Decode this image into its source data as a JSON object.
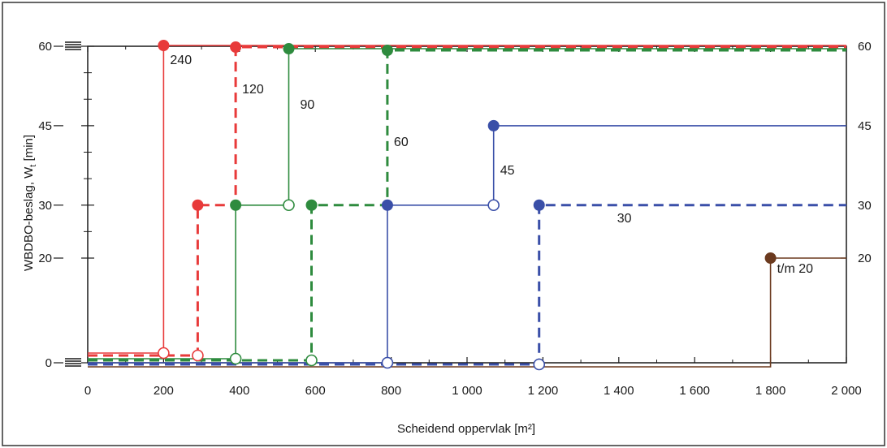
{
  "chart_data": {
    "type": "line",
    "xlabel": "Scheidend oppervlak [m²]",
    "ylabel": "WBDBO-beslag, W",
    "ylabel_sub": "t",
    "ylabel_unit": " [min]",
    "xlim": [
      0,
      2000
    ],
    "x_ticks": [
      0,
      200,
      400,
      600,
      800,
      1000,
      1200,
      1400,
      1600,
      1800,
      2000
    ],
    "x_tick_labels": [
      "0",
      "200",
      "400",
      "600",
      "800",
      "1 000",
      "1 200",
      "1 400",
      "1 600",
      "1 800",
      "2 000"
    ],
    "y_ticks_left": [
      0,
      20,
      30,
      45,
      60
    ],
    "y_tick_labels_left": [
      "0",
      "20",
      "30",
      "45",
      "60"
    ],
    "y_ticks_right": [
      20,
      30,
      45,
      60
    ],
    "y_tick_labels_right": [
      "20",
      "30",
      "45",
      "60"
    ],
    "grid": false,
    "series": [
      {
        "name": "240",
        "color": "#e83a3a",
        "dash": "solid",
        "points": [
          [
            0,
            0
          ],
          [
            200,
            0
          ],
          [
            200,
            60
          ],
          [
            2000,
            60
          ]
        ],
        "open_markers": [
          [
            200,
            0
          ]
        ],
        "filled_markers": [
          [
            200,
            60
          ]
        ]
      },
      {
        "name": "120",
        "color": "#e83a3a",
        "dash": "dashed",
        "points": [
          [
            0,
            0
          ],
          [
            290,
            0
          ],
          [
            290,
            30
          ],
          [
            390,
            30
          ],
          [
            390,
            60
          ],
          [
            2000,
            60
          ]
        ],
        "open_markers": [
          [
            290,
            0
          ]
        ],
        "filled_markers": [
          [
            290,
            30
          ],
          [
            390,
            60
          ]
        ]
      },
      {
        "name": "90",
        "color": "#2e8b3e",
        "dash": "solid",
        "points": [
          [
            0,
            0
          ],
          [
            390,
            0
          ],
          [
            390,
            30
          ],
          [
            530,
            30
          ],
          [
            530,
            60
          ],
          [
            2000,
            60
          ]
        ],
        "open_markers": [
          [
            390,
            0
          ],
          [
            530,
            30
          ]
        ],
        "filled_markers": [
          [
            390,
            30
          ],
          [
            530,
            60
          ]
        ]
      },
      {
        "name": "60",
        "color": "#2e8b3e",
        "dash": "dashed",
        "points": [
          [
            0,
            0
          ],
          [
            590,
            0
          ],
          [
            590,
            30
          ],
          [
            790,
            30
          ],
          [
            790,
            60
          ],
          [
            2000,
            60
          ]
        ],
        "open_markers": [
          [
            590,
            0
          ]
        ],
        "filled_markers": [
          [
            590,
            30
          ],
          [
            790,
            60
          ]
        ]
      },
      {
        "name": "45",
        "color": "#3a4fa8",
        "dash": "solid",
        "points": [
          [
            0,
            0
          ],
          [
            790,
            0
          ],
          [
            790,
            30
          ],
          [
            1070,
            30
          ],
          [
            1070,
            45
          ],
          [
            2000,
            45
          ]
        ],
        "open_markers": [
          [
            790,
            0
          ],
          [
            1070,
            30
          ]
        ],
        "filled_markers": [
          [
            790,
            30
          ],
          [
            1070,
            45
          ]
        ]
      },
      {
        "name": "30",
        "color": "#3a4fa8",
        "dash": "dashed",
        "points": [
          [
            0,
            0
          ],
          [
            1190,
            0
          ],
          [
            1190,
            30
          ],
          [
            2000,
            30
          ]
        ],
        "open_markers": [
          [
            1190,
            0
          ]
        ],
        "filled_markers": [
          [
            1190,
            30
          ]
        ]
      },
      {
        "name": "t/m 20",
        "color": "#6b3a1f",
        "dash": "solid",
        "points": [
          [
            0,
            0
          ],
          [
            1800,
            0
          ],
          [
            1800,
            20
          ],
          [
            2000,
            20
          ]
        ],
        "open_markers": [],
        "filled_markers": [
          [
            1800,
            20
          ]
        ]
      }
    ],
    "annotations": [
      {
        "text": "240",
        "x": 200,
        "y": 60
      },
      {
        "text": "120",
        "x": 390,
        "y": 60
      },
      {
        "text": "90",
        "x": 530,
        "y": 60
      },
      {
        "text": "60",
        "x": 790,
        "y": 60
      },
      {
        "text": "45",
        "x": 1070,
        "y": 45
      },
      {
        "text": "30",
        "x": 1190,
        "y": 30
      },
      {
        "text": "t/m 20",
        "x": 1800,
        "y": 20
      }
    ]
  }
}
